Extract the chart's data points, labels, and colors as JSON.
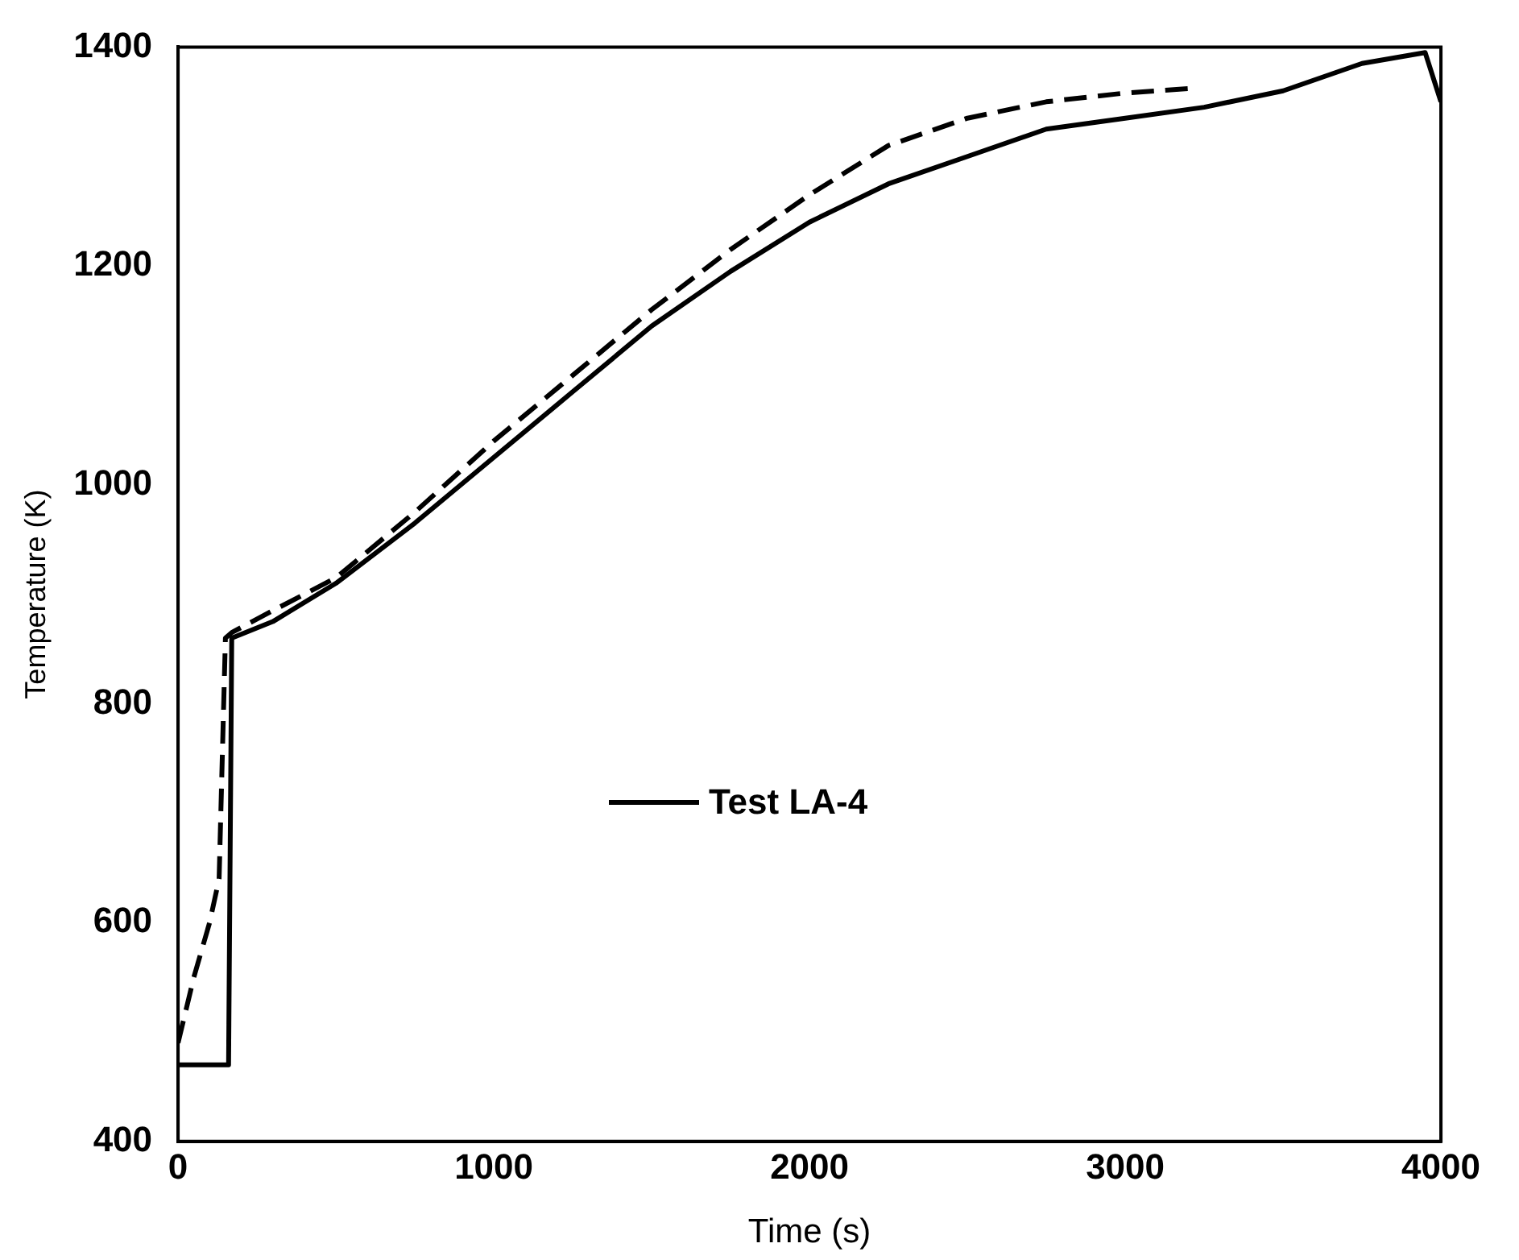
{
  "chart_data": {
    "type": "line",
    "xlabel": "Time (s)",
    "ylabel": "Temperature (K)",
    "xlim": [
      0,
      4000
    ],
    "xticks": [
      0,
      1000,
      2000,
      3000,
      4000
    ],
    "ylim": [
      400,
      1400
    ],
    "yticks": [
      400,
      600,
      800,
      1000,
      1200,
      1400
    ],
    "grid": false,
    "legend": "center",
    "marker": "none",
    "series": [
      {
        "color": "#000000",
        "line_style": "dashed",
        "x": [
          0,
          50,
          100,
          130,
          150,
          170,
          300,
          500,
          750,
          1000,
          1250,
          1500,
          1750,
          2000,
          2250,
          2500,
          2750,
          3000,
          3200
        ],
        "values": [
          490,
          550,
          600,
          640,
          860,
          865,
          885,
          915,
          975,
          1040,
          1100,
          1160,
          1215,
          1265,
          1310,
          1335,
          1350,
          1358,
          1362
        ]
      },
      {
        "name": "Test LA-4",
        "color": "#000000",
        "line_style": "solid",
        "x": [
          0,
          150,
          160,
          170,
          300,
          500,
          750,
          1000,
          1250,
          1500,
          1750,
          2000,
          2250,
          2500,
          2750,
          3000,
          3250,
          3500,
          3750,
          3950,
          4000
        ],
        "values": [
          470,
          470,
          470,
          860,
          875,
          910,
          965,
          1025,
          1085,
          1145,
          1195,
          1240,
          1275,
          1300,
          1325,
          1335,
          1345,
          1360,
          1385,
          1395,
          1350
        ]
      }
    ]
  }
}
